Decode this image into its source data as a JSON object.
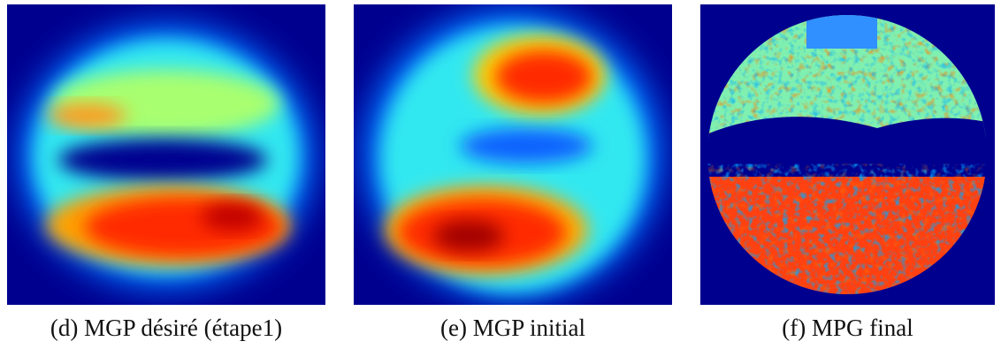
{
  "figures": [
    {
      "caption": "(d) MGP désiré (étape1)"
    },
    {
      "caption": "(e) MGP initial"
    },
    {
      "caption": "(f) MPG final"
    }
  ]
}
